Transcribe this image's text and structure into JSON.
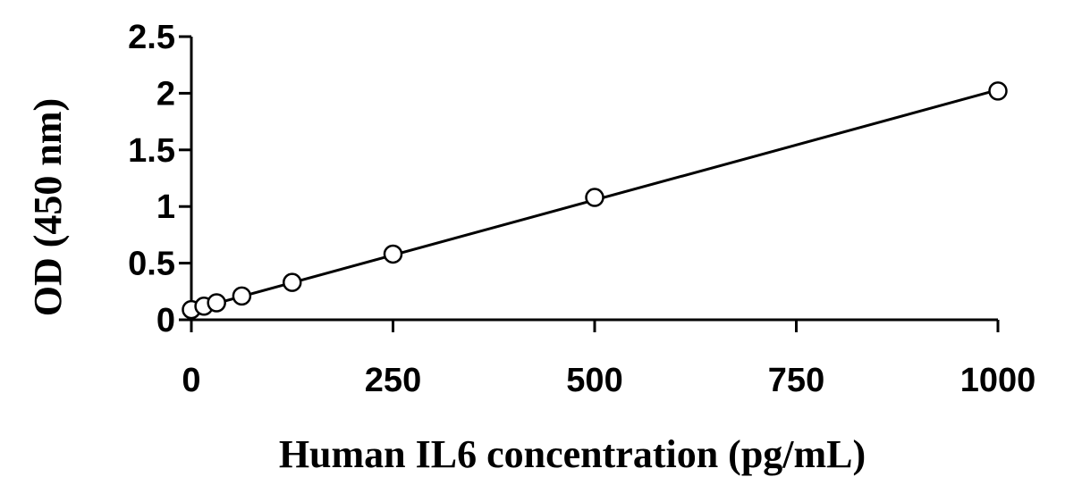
{
  "chart_data": {
    "type": "scatter",
    "title": "",
    "xlabel": "Human IL6 concentration (pg/mL)",
    "ylabel": "OD (450 nm)",
    "xlim": [
      0,
      1000
    ],
    "ylim": [
      0,
      2.5
    ],
    "x_ticks": [
      0,
      250,
      500,
      750,
      1000
    ],
    "x_tick_labels": [
      "0",
      "250",
      "500",
      "750",
      "1000"
    ],
    "y_ticks": [
      0,
      0.5,
      1,
      1.5,
      2,
      2.5
    ],
    "y_tick_labels": [
      "0",
      "0.5",
      "1",
      "1.5",
      "2",
      "2.5"
    ],
    "grid": false,
    "legend": "none",
    "series": [
      {
        "marker": "open-circle",
        "x": [
          0,
          15.6,
          31.25,
          62.5,
          125,
          250,
          500,
          1000
        ],
        "y": [
          0.09,
          0.12,
          0.15,
          0.21,
          0.33,
          0.58,
          1.08,
          2.02
        ]
      }
    ],
    "trendline": {
      "type": "linear",
      "x": [
        0,
        1000
      ],
      "y": [
        0.085,
        2.03
      ]
    },
    "colors": {
      "axis": "#000000",
      "marker_stroke": "#000000",
      "line": "#000000"
    }
  }
}
